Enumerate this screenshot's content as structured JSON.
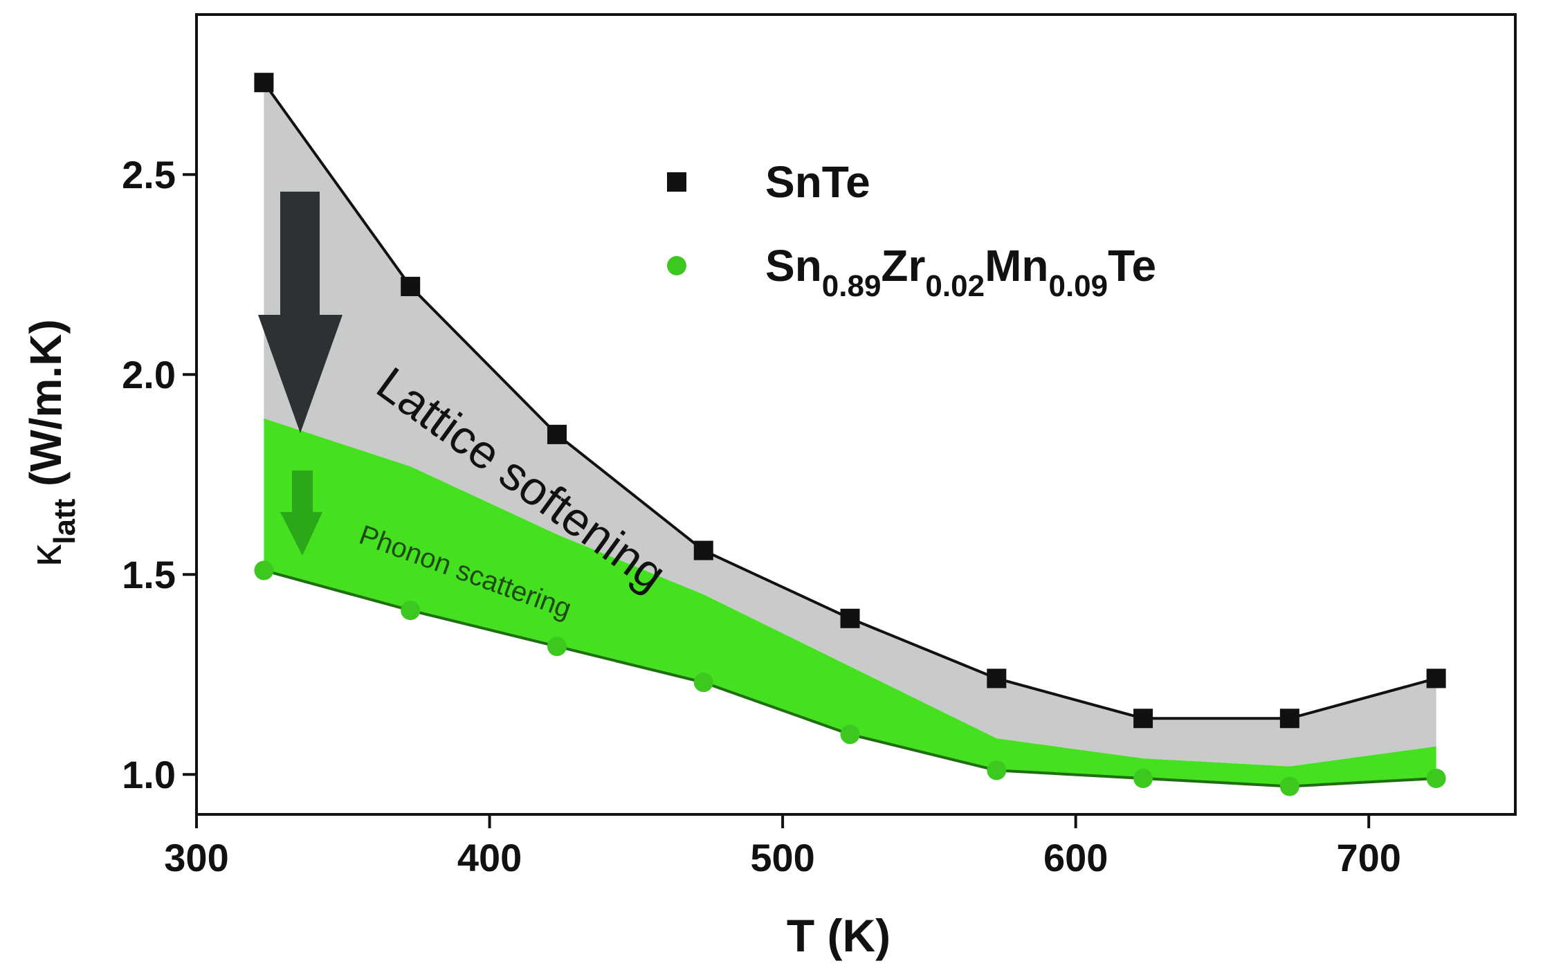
{
  "chart_data": {
    "type": "line",
    "x_label": "T (K)",
    "y_label": {
      "symbol": "κ",
      "subscript": "latt",
      "unit": "(W/m.K)"
    },
    "x": [
      323,
      373,
      423,
      473,
      523,
      573,
      623,
      673,
      723
    ],
    "series": [
      {
        "name": "SnTe",
        "color": "#111111",
        "marker": "square",
        "values": [
          2.73,
          2.22,
          1.85,
          1.56,
          1.39,
          1.24,
          1.14,
          1.14,
          1.24
        ]
      },
      {
        "name": "Sn0.89Zr0.02Mn0.09Te",
        "color": "#3cc81e",
        "marker": "circle",
        "values": [
          1.51,
          1.41,
          1.32,
          1.23,
          1.1,
          1.01,
          0.99,
          0.97,
          0.99
        ]
      }
    ],
    "band_top": [
      1.89,
      1.77,
      1.6,
      1.45,
      1.27,
      1.09,
      1.04,
      1.02,
      1.07
    ],
    "annotations": [
      "Lattice softening",
      "Phonon scattering"
    ],
    "xlim": [
      300,
      750
    ],
    "xticks": [
      300,
      400,
      500,
      600,
      700
    ],
    "ylim": [
      0.9,
      2.9
    ],
    "yticks": [
      {
        "value": 1,
        "label": "1.0"
      },
      1.5,
      {
        "value": 2,
        "label": "2.0"
      },
      2.5
    ]
  }
}
